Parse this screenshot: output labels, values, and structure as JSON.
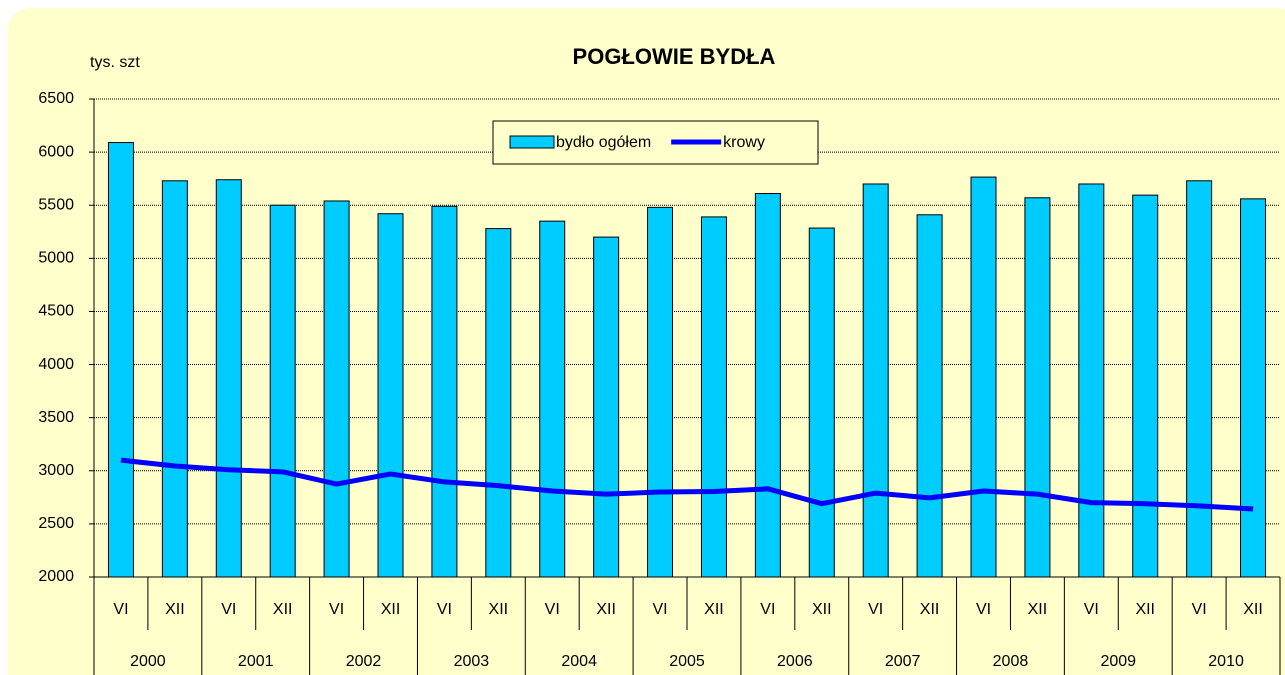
{
  "chart_data": {
    "type": "bar_line",
    "title": "POGŁOWIE BYDŁA",
    "y_label": "tys. szt",
    "categories": [
      "VI",
      "XII",
      "VI",
      "XII",
      "VI",
      "XII",
      "VI",
      "XII",
      "VI",
      "XII",
      "VI",
      "XII",
      "VI",
      "XII",
      "VI",
      "XII",
      "VI",
      "XII",
      "VI",
      "XII",
      "VI",
      "XII"
    ],
    "years": [
      "2000",
      "2001",
      "2002",
      "2003",
      "2004",
      "2005",
      "2006",
      "2007",
      "2008",
      "2009",
      "2010"
    ],
    "series": [
      {
        "name": "bydło ogółem",
        "type": "bar",
        "color": "#00ccff",
        "values": [
          6090,
          5730,
          5740,
          5500,
          5540,
          5420,
          5490,
          5280,
          5350,
          5200,
          5480,
          5390,
          5610,
          5285,
          5700,
          5410,
          5765,
          5570,
          5700,
          5595,
          5730,
          5560
        ]
      },
      {
        "name": "krowy",
        "type": "line",
        "color": "#0000ff",
        "values": [
          3100,
          3045,
          3010,
          2990,
          2875,
          2970,
          2895,
          2860,
          2810,
          2780,
          2800,
          2805,
          2830,
          2690,
          2790,
          2745,
          2810,
          2780,
          2700,
          2690,
          2670,
          2640
        ]
      }
    ],
    "ylim": [
      2000,
      6500
    ],
    "yticks": [
      2000,
      2500,
      3000,
      3500,
      4000,
      4500,
      5000,
      5500,
      6000,
      6500
    ],
    "grid": true,
    "legend": "top"
  }
}
